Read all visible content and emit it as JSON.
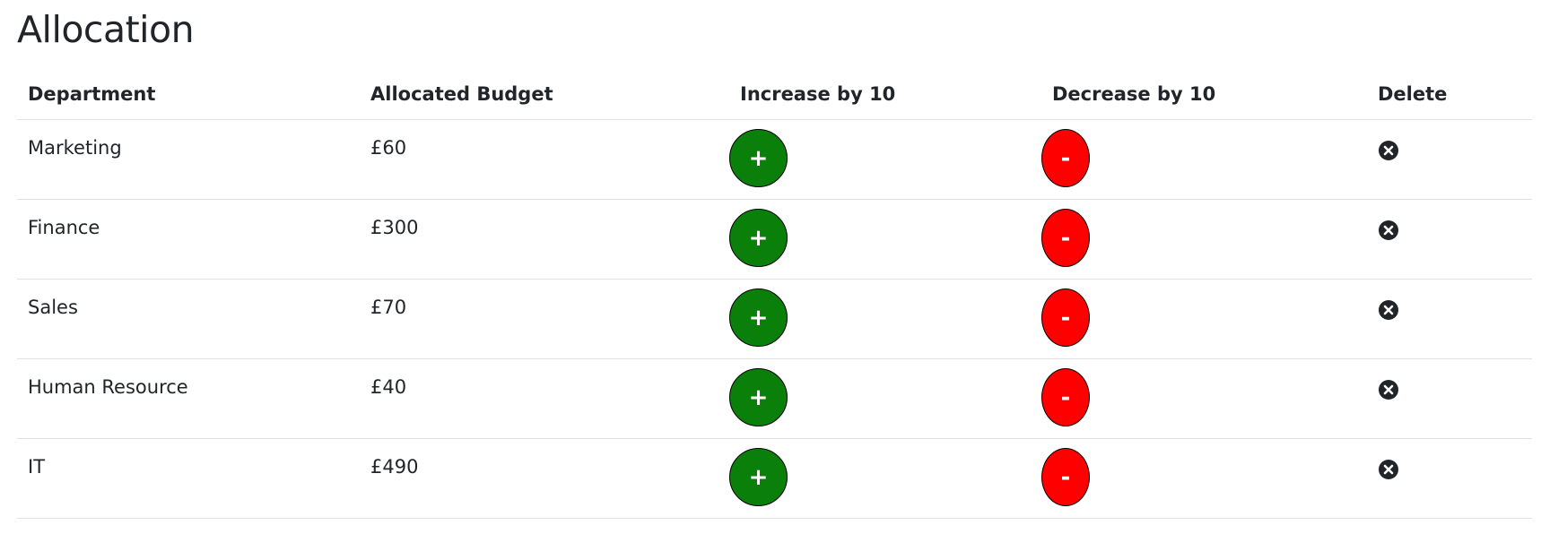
{
  "page": {
    "title": "Allocation"
  },
  "table": {
    "headers": {
      "department": "Department",
      "budget": "Allocated Budget",
      "increase": "Increase by 10",
      "decrease": "Decrease by 10",
      "delete": "Delete"
    },
    "rows": [
      {
        "department": "Marketing",
        "budget": "£60",
        "increase_label": "+",
        "decrease_label": "-"
      },
      {
        "department": "Finance",
        "budget": "£300",
        "increase_label": "+",
        "decrease_label": "-"
      },
      {
        "department": "Sales",
        "budget": "£70",
        "increase_label": "+",
        "decrease_label": "-"
      },
      {
        "department": "Human Resource",
        "budget": "£40",
        "increase_label": "+",
        "decrease_label": "-"
      },
      {
        "department": "IT",
        "budget": "£490",
        "increase_label": "+",
        "decrease_label": "-"
      }
    ]
  },
  "colors": {
    "increase": "#0a800a",
    "decrease": "#ff0000",
    "text": "#212529",
    "divider": "#dee2e6"
  },
  "icons": {
    "delete": "close-circle-icon"
  }
}
